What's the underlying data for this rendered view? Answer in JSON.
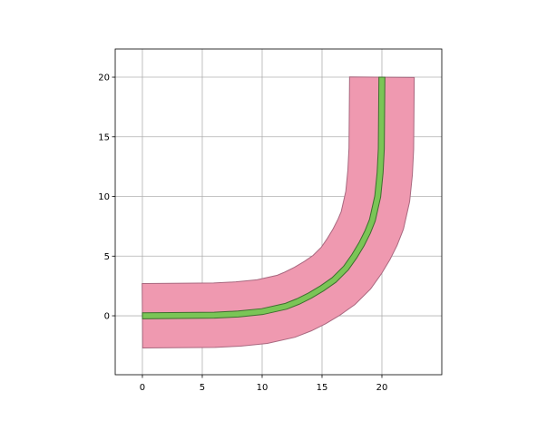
{
  "chart_data": {
    "type": "polygon",
    "xlim": [
      -2.27,
      25.0
    ],
    "ylim": [
      -4.94,
      22.36
    ],
    "xticks": [
      0,
      5,
      10,
      15,
      20
    ],
    "yticks": [
      0,
      5,
      10,
      15,
      20
    ],
    "grid": true,
    "shapes": [
      {
        "color": "#ef99b0",
        "edgecolor": "#a8687f",
        "width": 5.4,
        "x": [
          0,
          6,
          8,
          10,
          12,
          13,
          14,
          15,
          16,
          17,
          17.7,
          18.3,
          18.8,
          19.2,
          19.65,
          19.85,
          19.95,
          20
        ],
        "y": [
          0,
          0.05,
          0.15,
          0.35,
          0.8,
          1.2,
          1.7,
          2.3,
          3.0,
          4.0,
          5.0,
          6.0,
          7.0,
          8.0,
          10.0,
          12.0,
          14.0,
          20
        ]
      },
      {
        "color": "#7ac556",
        "edgecolor": "#3d6e2e",
        "width": 0.5,
        "x": [
          0,
          6,
          8,
          10,
          12,
          13,
          14,
          15,
          16,
          17,
          17.7,
          18.3,
          18.8,
          19.2,
          19.65,
          19.85,
          19.95,
          20
        ],
        "y": [
          0,
          0.05,
          0.15,
          0.35,
          0.8,
          1.2,
          1.7,
          2.3,
          3.0,
          4.0,
          5.0,
          6.0,
          7.0,
          8.0,
          10.0,
          12.0,
          14.0,
          20
        ]
      }
    ]
  }
}
